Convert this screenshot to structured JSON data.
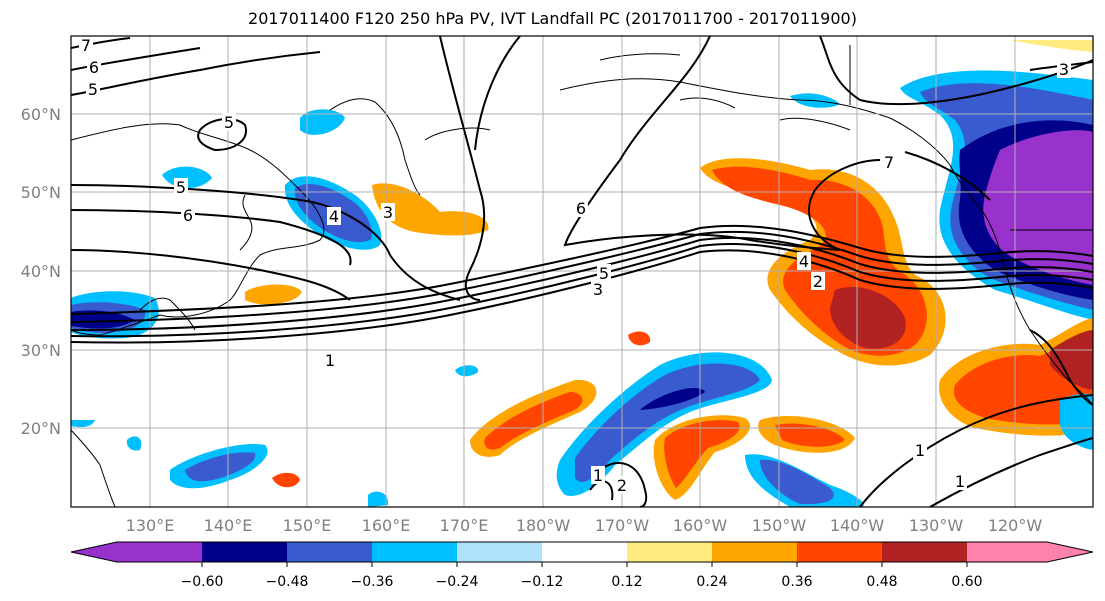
{
  "title": "2017011400 F120 250 hPa PV, IVT Landfall PC (2017011700 - 2017011900)",
  "lat_labels": [
    "60°N",
    "50°N",
    "40°N",
    "30°N",
    "20°N"
  ],
  "lon_labels": [
    "130°E",
    "140°E",
    "150°E",
    "160°E",
    "170°E",
    "180°W",
    "170°W",
    "160°W",
    "150°W",
    "140°W",
    "130°W",
    "120°W"
  ],
  "colorbar": {
    "colors": [
      "#9932CC",
      "#00008B",
      "#3A5BCF",
      "#00BFFF",
      "#AEE2FA",
      "#FFFFFF",
      "#FFEB80",
      "#FFA500",
      "#FF4500",
      "#B22222",
      "#FF82AB"
    ],
    "tick_labels": [
      "−0.60",
      "−0.48",
      "−0.36",
      "−0.24",
      "−0.12",
      "0.12",
      "0.24",
      "0.36",
      "0.48",
      "0.60"
    ]
  },
  "contour_labels": [
    "7",
    "6",
    "5",
    "5",
    "5",
    "6",
    "4",
    "3",
    "6",
    "5",
    "3",
    "1",
    "2",
    "4",
    "7",
    "3",
    "1",
    "1",
    "1",
    "2"
  ]
}
